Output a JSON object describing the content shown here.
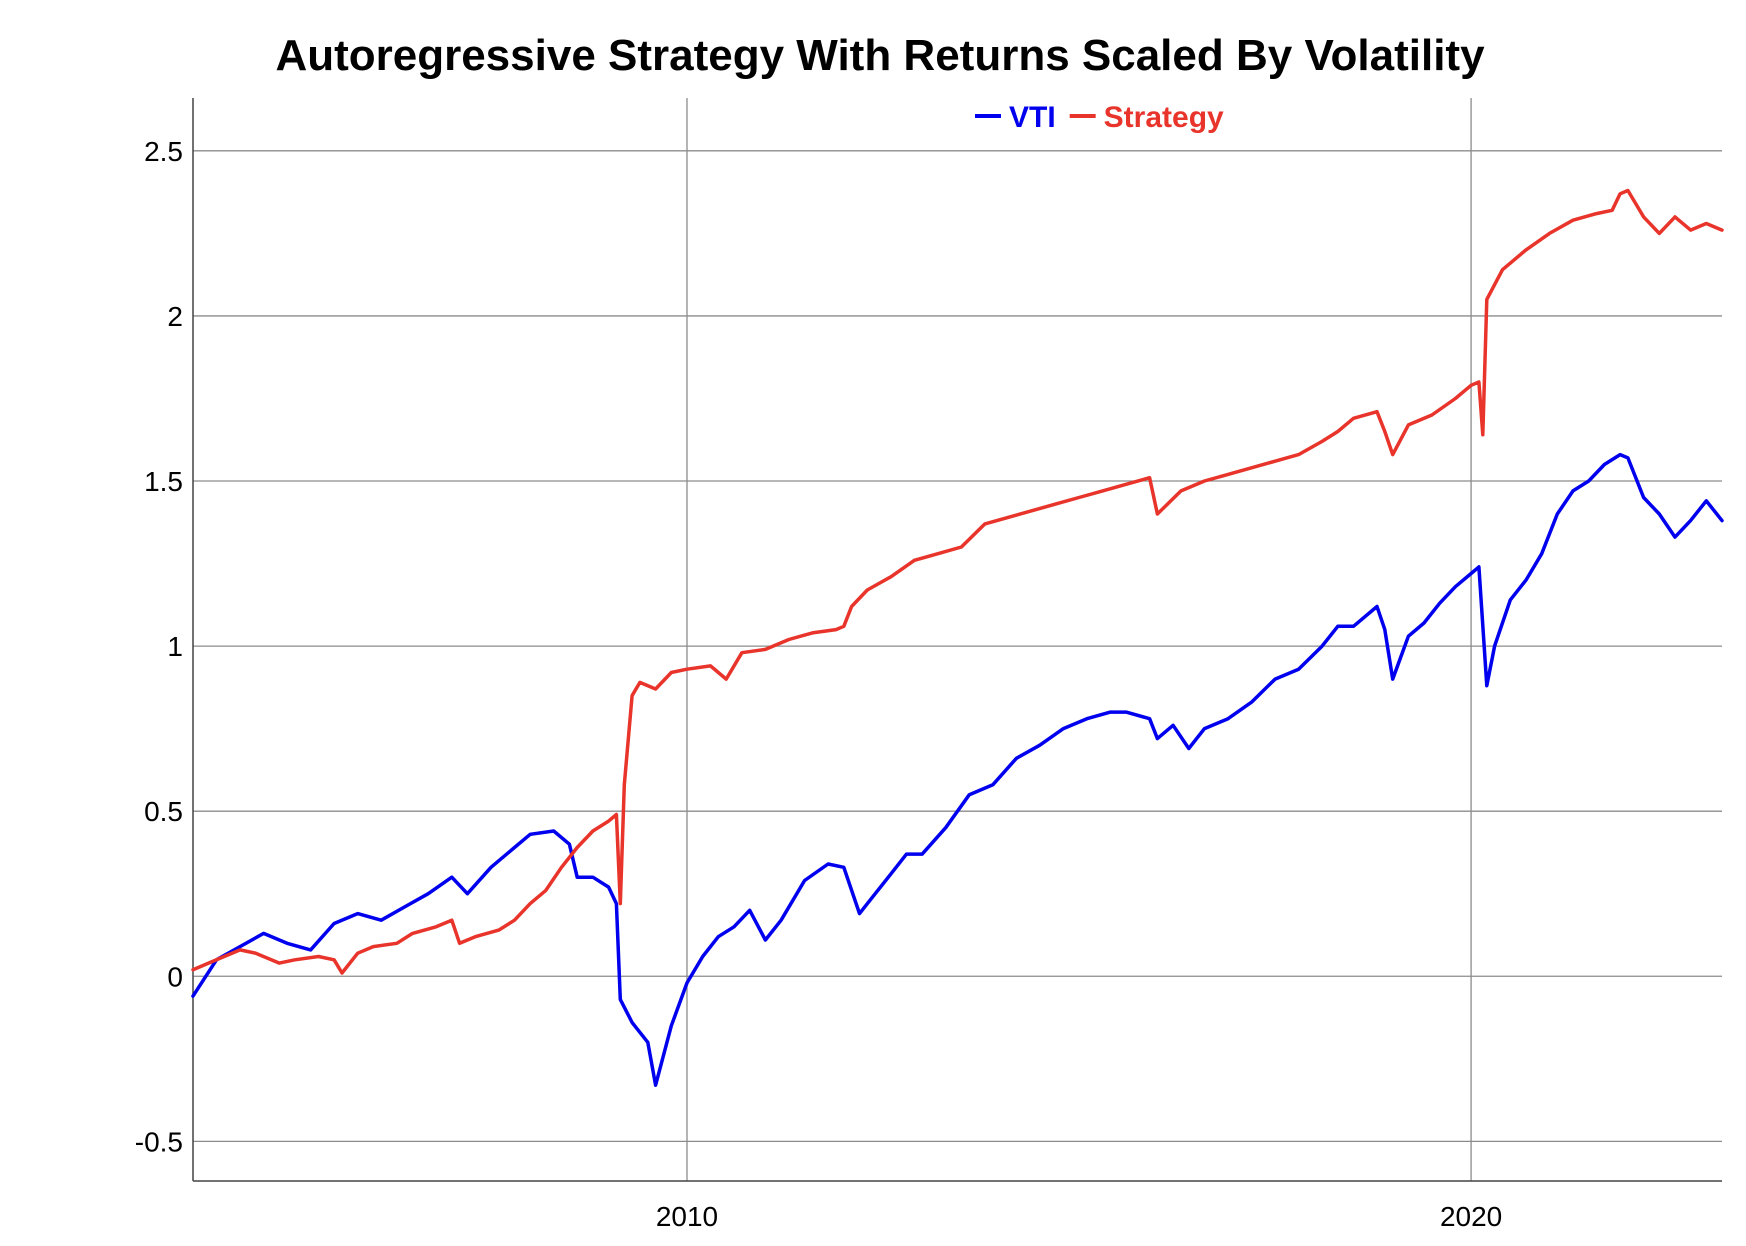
{
  "chart_data": {
    "type": "line",
    "title": "Autoregressive Strategy With Returns Scaled By Volatility",
    "xlabel": "",
    "ylabel": "",
    "x_ticks": [
      "2010",
      "2020"
    ],
    "y_ticks": [
      "2.5",
      "2",
      "1.5",
      "1",
      "0.5",
      "0",
      "-0.5"
    ],
    "ylim": [
      -0.62,
      2.66
    ],
    "xlim": [
      2003.7,
      2023.2
    ],
    "grid": true,
    "legend_position": "top-center",
    "series": [
      {
        "name": "VTI",
        "color": "#0000ee",
        "points": [
          [
            2003.7,
            -0.06
          ],
          [
            2004.0,
            0.05
          ],
          [
            2004.3,
            0.09
          ],
          [
            2004.6,
            0.13
          ],
          [
            2004.9,
            0.1
          ],
          [
            2005.2,
            0.08
          ],
          [
            2005.5,
            0.16
          ],
          [
            2005.8,
            0.19
          ],
          [
            2006.1,
            0.17
          ],
          [
            2006.4,
            0.21
          ],
          [
            2006.7,
            0.25
          ],
          [
            2007.0,
            0.3
          ],
          [
            2007.2,
            0.25
          ],
          [
            2007.5,
            0.33
          ],
          [
            2007.8,
            0.39
          ],
          [
            2008.0,
            0.43
          ],
          [
            2008.3,
            0.44
          ],
          [
            2008.5,
            0.4
          ],
          [
            2008.6,
            0.3
          ],
          [
            2008.8,
            0.3
          ],
          [
            2009.0,
            0.27
          ],
          [
            2009.1,
            0.22
          ],
          [
            2009.15,
            -0.07
          ],
          [
            2009.3,
            -0.14
          ],
          [
            2009.5,
            -0.2
          ],
          [
            2009.6,
            -0.33
          ],
          [
            2009.8,
            -0.15
          ],
          [
            2010.0,
            -0.02
          ],
          [
            2010.2,
            0.06
          ],
          [
            2010.4,
            0.12
          ],
          [
            2010.6,
            0.15
          ],
          [
            2010.8,
            0.2
          ],
          [
            2011.0,
            0.11
          ],
          [
            2011.2,
            0.17
          ],
          [
            2011.5,
            0.29
          ],
          [
            2011.8,
            0.34
          ],
          [
            2012.0,
            0.33
          ],
          [
            2012.2,
            0.19
          ],
          [
            2012.4,
            0.25
          ],
          [
            2012.6,
            0.31
          ],
          [
            2012.8,
            0.37
          ],
          [
            2013.0,
            0.37
          ],
          [
            2013.3,
            0.45
          ],
          [
            2013.6,
            0.55
          ],
          [
            2013.9,
            0.58
          ],
          [
            2014.2,
            0.66
          ],
          [
            2014.5,
            0.7
          ],
          [
            2014.8,
            0.75
          ],
          [
            2015.1,
            0.78
          ],
          [
            2015.4,
            0.8
          ],
          [
            2015.6,
            0.8
          ],
          [
            2015.9,
            0.78
          ],
          [
            2016.0,
            0.72
          ],
          [
            2016.2,
            0.76
          ],
          [
            2016.4,
            0.69
          ],
          [
            2016.6,
            0.75
          ],
          [
            2016.9,
            0.78
          ],
          [
            2017.2,
            0.83
          ],
          [
            2017.5,
            0.9
          ],
          [
            2017.8,
            0.93
          ],
          [
            2018.1,
            1.0
          ],
          [
            2018.3,
            1.06
          ],
          [
            2018.5,
            1.06
          ],
          [
            2018.8,
            1.12
          ],
          [
            2018.9,
            1.05
          ],
          [
            2019.0,
            0.9
          ],
          [
            2019.2,
            1.03
          ],
          [
            2019.4,
            1.07
          ],
          [
            2019.6,
            1.13
          ],
          [
            2019.8,
            1.18
          ],
          [
            2020.0,
            1.22
          ],
          [
            2020.1,
            1.24
          ],
          [
            2020.2,
            0.88
          ],
          [
            2020.3,
            1.0
          ],
          [
            2020.5,
            1.14
          ],
          [
            2020.7,
            1.2
          ],
          [
            2020.9,
            1.28
          ],
          [
            2021.1,
            1.4
          ],
          [
            2021.3,
            1.47
          ],
          [
            2021.5,
            1.5
          ],
          [
            2021.7,
            1.55
          ],
          [
            2021.9,
            1.58
          ],
          [
            2022.0,
            1.57
          ],
          [
            2022.2,
            1.45
          ],
          [
            2022.4,
            1.4
          ],
          [
            2022.6,
            1.33
          ],
          [
            2022.8,
            1.38
          ],
          [
            2023.0,
            1.44
          ],
          [
            2023.2,
            1.38
          ]
        ]
      },
      {
        "name": "Strategy",
        "color": "#e8342a",
        "points": [
          [
            2003.7,
            0.02
          ],
          [
            2004.0,
            0.05
          ],
          [
            2004.3,
            0.08
          ],
          [
            2004.5,
            0.07
          ],
          [
            2004.8,
            0.04
          ],
          [
            2005.0,
            0.05
          ],
          [
            2005.3,
            0.06
          ],
          [
            2005.5,
            0.05
          ],
          [
            2005.6,
            0.01
          ],
          [
            2005.8,
            0.07
          ],
          [
            2006.0,
            0.09
          ],
          [
            2006.3,
            0.1
          ],
          [
            2006.5,
            0.13
          ],
          [
            2006.8,
            0.15
          ],
          [
            2007.0,
            0.17
          ],
          [
            2007.1,
            0.1
          ],
          [
            2007.3,
            0.12
          ],
          [
            2007.6,
            0.14
          ],
          [
            2007.8,
            0.17
          ],
          [
            2008.0,
            0.22
          ],
          [
            2008.2,
            0.26
          ],
          [
            2008.4,
            0.33
          ],
          [
            2008.6,
            0.39
          ],
          [
            2008.8,
            0.44
          ],
          [
            2009.0,
            0.47
          ],
          [
            2009.1,
            0.49
          ],
          [
            2009.15,
            0.22
          ],
          [
            2009.2,
            0.58
          ],
          [
            2009.3,
            0.85
          ],
          [
            2009.4,
            0.89
          ],
          [
            2009.6,
            0.87
          ],
          [
            2009.8,
            0.92
          ],
          [
            2010.0,
            0.93
          ],
          [
            2010.3,
            0.94
          ],
          [
            2010.5,
            0.9
          ],
          [
            2010.7,
            0.98
          ],
          [
            2011.0,
            0.99
          ],
          [
            2011.3,
            1.02
          ],
          [
            2011.6,
            1.04
          ],
          [
            2011.9,
            1.05
          ],
          [
            2012.0,
            1.06
          ],
          [
            2012.1,
            1.12
          ],
          [
            2012.3,
            1.17
          ],
          [
            2012.6,
            1.21
          ],
          [
            2012.9,
            1.26
          ],
          [
            2013.2,
            1.28
          ],
          [
            2013.5,
            1.3
          ],
          [
            2013.8,
            1.37
          ],
          [
            2014.1,
            1.39
          ],
          [
            2014.4,
            1.41
          ],
          [
            2014.7,
            1.43
          ],
          [
            2015.0,
            1.45
          ],
          [
            2015.3,
            1.47
          ],
          [
            2015.6,
            1.49
          ],
          [
            2015.9,
            1.51
          ],
          [
            2016.0,
            1.4
          ],
          [
            2016.3,
            1.47
          ],
          [
            2016.6,
            1.5
          ],
          [
            2016.9,
            1.52
          ],
          [
            2017.2,
            1.54
          ],
          [
            2017.5,
            1.56
          ],
          [
            2017.8,
            1.58
          ],
          [
            2018.1,
            1.62
          ],
          [
            2018.3,
            1.65
          ],
          [
            2018.5,
            1.69
          ],
          [
            2018.8,
            1.71
          ],
          [
            2018.9,
            1.65
          ],
          [
            2019.0,
            1.58
          ],
          [
            2019.2,
            1.67
          ],
          [
            2019.5,
            1.7
          ],
          [
            2019.8,
            1.75
          ],
          [
            2020.0,
            1.79
          ],
          [
            2020.1,
            1.8
          ],
          [
            2020.15,
            1.64
          ],
          [
            2020.2,
            2.05
          ],
          [
            2020.4,
            2.14
          ],
          [
            2020.7,
            2.2
          ],
          [
            2021.0,
            2.25
          ],
          [
            2021.3,
            2.29
          ],
          [
            2021.6,
            2.31
          ],
          [
            2021.8,
            2.32
          ],
          [
            2021.9,
            2.37
          ],
          [
            2022.0,
            2.38
          ],
          [
            2022.2,
            2.3
          ],
          [
            2022.4,
            2.25
          ],
          [
            2022.6,
            2.3
          ],
          [
            2022.8,
            2.26
          ],
          [
            2023.0,
            2.28
          ],
          [
            2023.2,
            2.26
          ]
        ]
      }
    ]
  }
}
